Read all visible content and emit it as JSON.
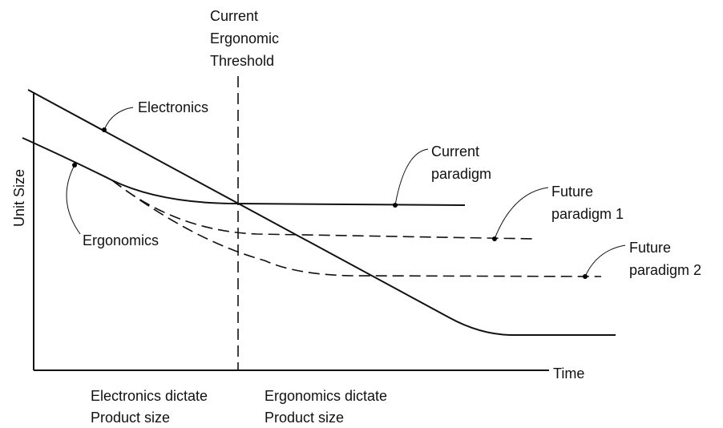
{
  "diagram": {
    "threshold_label": [
      "Current",
      "Ergonomic",
      "Threshold"
    ],
    "y_axis_label": "Unit Size",
    "x_axis_label": "Time",
    "electronics_label": "Electronics",
    "ergonomics_label": "Ergonomics",
    "current_paradigm_label": [
      "Current",
      "paradigm"
    ],
    "future_paradigm_1_label": [
      "Future",
      "paradigm 1"
    ],
    "future_paradigm_2_label": [
      "Future",
      "paradigm 2"
    ],
    "left_region_label": [
      "Electronics dictate",
      "Product size"
    ],
    "right_region_label": [
      "Ergonomics dictate",
      "Product size"
    ]
  }
}
